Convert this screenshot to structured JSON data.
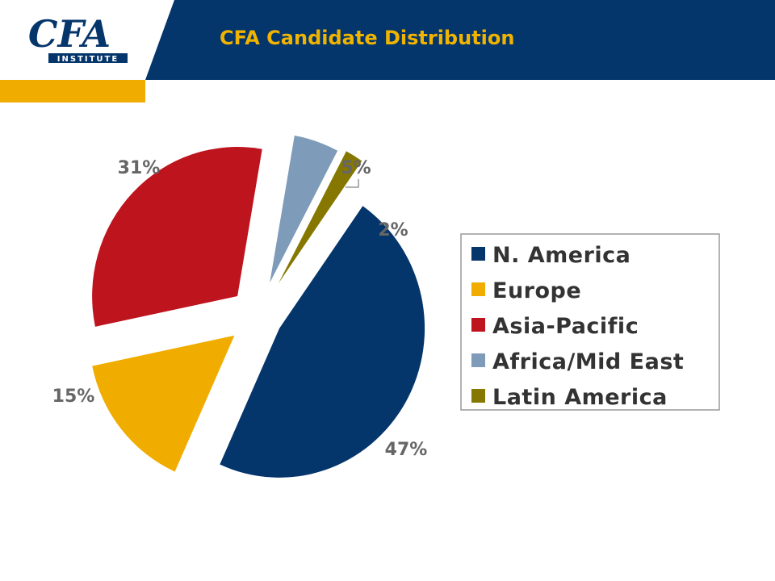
{
  "header": {
    "title": "CFA Candidate Distribution",
    "logo_text": "CFA",
    "logo_subtext": "INSTITUTE"
  },
  "colors": {
    "header_bg": "#04356b",
    "accent": "#f0ad00",
    "title": "#f0b400"
  },
  "chart_data": {
    "type": "pie",
    "title": "",
    "legend_position": "right",
    "slices": [
      {
        "label": "N. America",
        "value": 47,
        "display": "47%",
        "color": "#04356b"
      },
      {
        "label": "Europe",
        "value": 15,
        "display": "15%",
        "color": "#f0ad00"
      },
      {
        "label": "Asia-Pacific",
        "value": 31,
        "display": "31%",
        "color": "#be141e"
      },
      {
        "label": "Africa/Mid East",
        "value": 5,
        "display": "5%",
        "color": "#7e9cb9"
      },
      {
        "label": "Latin America",
        "value": 2,
        "display": "2%",
        "color": "#857700"
      }
    ]
  }
}
